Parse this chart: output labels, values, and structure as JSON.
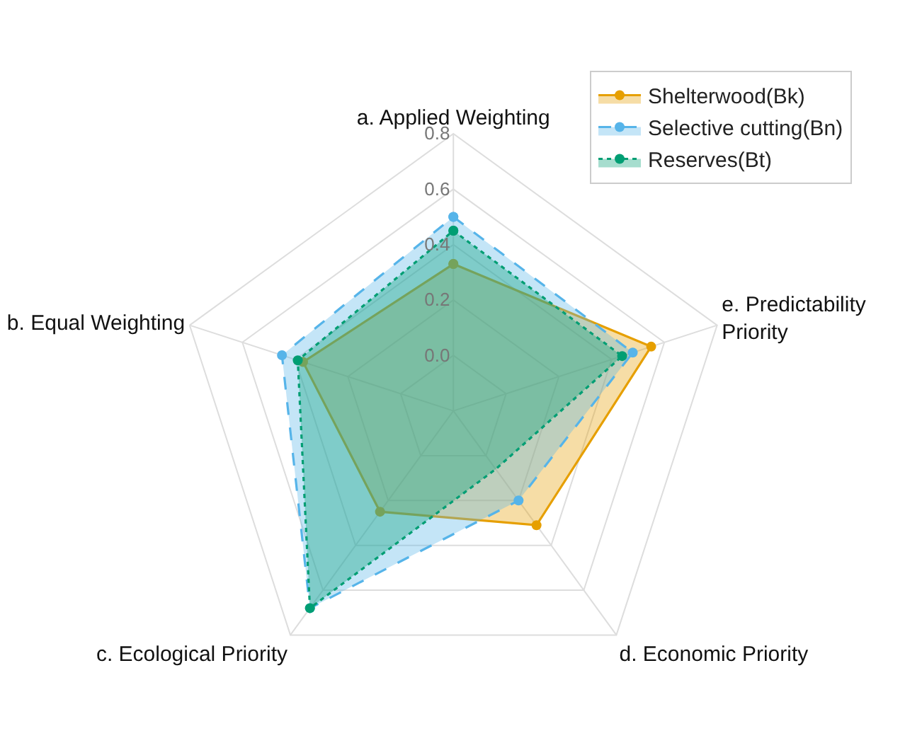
{
  "chart_data": {
    "type": "radar",
    "categories": [
      "a. Applied Weighting",
      "e. Predictability\nPriority",
      "d. Economic Priority",
      "c. Ecological Priority",
      "b. Equal Weighting"
    ],
    "series": [
      {
        "name": "Shelterwood(Bk)",
        "color": "#e69f00",
        "line_style": "solid",
        "values": [
          0.33,
          0.55,
          0.31,
          0.25,
          0.37
        ]
      },
      {
        "name": "Selective cutting(Bn)",
        "color": "#56b4e9",
        "line_style": "dashed",
        "values": [
          0.5,
          0.48,
          0.2,
          0.68,
          0.45
        ]
      },
      {
        "name": "Reserves(Bt)",
        "color": "#009e73",
        "line_style": "dotted",
        "values": [
          0.45,
          0.44,
          0.06,
          0.68,
          0.39
        ]
      }
    ],
    "ylim": [
      -0.2,
      0.8
    ],
    "yticks": [
      {
        "value": 0,
        "label": "0.0"
      },
      0.2,
      0.4,
      0.6,
      0.8
    ],
    "marker": "circle",
    "grid": true,
    "legend": "top right"
  }
}
